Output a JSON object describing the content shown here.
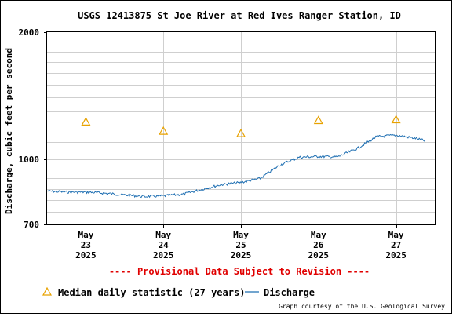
{
  "chart_data": {
    "type": "line",
    "title": "USGS 12413875 St Joe River at Red Ives Ranger Station, ID",
    "ylabel": "Discharge, cubic feet per second",
    "y_scale": "log",
    "ylim": [
      700,
      2000
    ],
    "y_ticks": [
      "2000",
      "1000",
      "700"
    ],
    "x_range": [
      "2025-05-22T12:00",
      "2025-05-27T12:00"
    ],
    "x_ticks": [
      {
        "date": "2025-05-23",
        "month": "May",
        "day": "23",
        "year": "2025"
      },
      {
        "date": "2025-05-24",
        "month": "May",
        "day": "24",
        "year": "2025"
      },
      {
        "date": "2025-05-25",
        "month": "May",
        "day": "25",
        "year": "2025"
      },
      {
        "date": "2025-05-26",
        "month": "May",
        "day": "26",
        "year": "2025"
      },
      {
        "date": "2025-05-27",
        "month": "May",
        "day": "27",
        "year": "2025"
      }
    ],
    "grid": true,
    "series": [
      {
        "name": "Discharge",
        "type": "line",
        "color": "#1f6fb2",
        "x": [
          "2025-05-22T12:00",
          "2025-05-22T18:00",
          "2025-05-23T00:00",
          "2025-05-23T06:00",
          "2025-05-23T12:00",
          "2025-05-23T18:00",
          "2025-05-24T00:00",
          "2025-05-24T06:00",
          "2025-05-24T12:00",
          "2025-05-24T18:00",
          "2025-05-25T00:00",
          "2025-05-25T06:00",
          "2025-05-25T12:00",
          "2025-05-25T18:00",
          "2025-05-26T00:00",
          "2025-05-26T06:00",
          "2025-05-26T12:00",
          "2025-05-26T18:00",
          "2025-05-27T00:00",
          "2025-05-27T06:00",
          "2025-05-27T09:00"
        ],
        "y": [
          840,
          835,
          835,
          830,
          822,
          815,
          818,
          825,
          848,
          870,
          880,
          900,
          968,
          1010,
          1015,
          1012,
          1060,
          1130,
          1140,
          1120,
          1105
        ]
      },
      {
        "name": "Median daily statistic (27 years)",
        "type": "marker",
        "marker": "triangle",
        "color": "#e8a200",
        "x": [
          "2025-05-23T00:00",
          "2025-05-24T00:00",
          "2025-05-25T00:00",
          "2025-05-26T00:00",
          "2025-05-27T00:00"
        ],
        "y": [
          1225,
          1165,
          1150,
          1235,
          1240
        ]
      }
    ],
    "legend_position": "bottom",
    "provisional_note": "---- Provisional Data Subject to Revision ----",
    "credit": "Graph courtesy of the U.S. Geological Survey"
  }
}
